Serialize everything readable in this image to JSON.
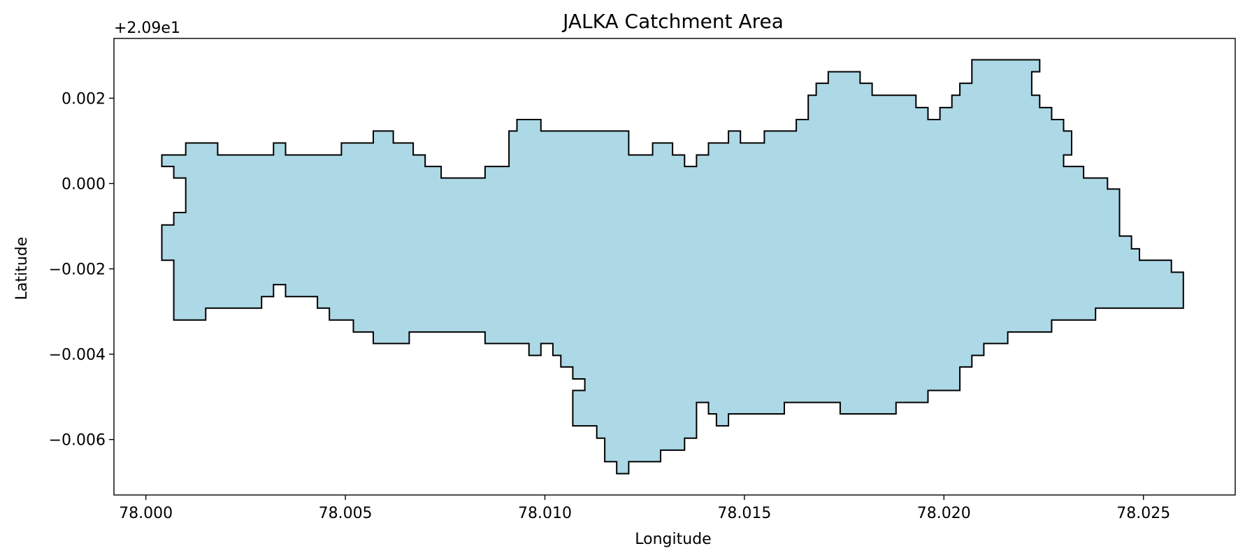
{
  "chart_data": {
    "type": "area",
    "title": "JALKA Catchment Area",
    "xlabel": "Longitude",
    "ylabel": "Latitude",
    "y_offset_label": "+2.09e1",
    "y_offset": 20.9,
    "xlim": [
      77.9992,
      78.0273
    ],
    "ylim": [
      -0.0073,
      0.0034
    ],
    "x_ticks": [
      78.0,
      78.005,
      78.01,
      78.015,
      78.02,
      78.025
    ],
    "x_tick_labels": [
      "78.000",
      "78.005",
      "78.010",
      "78.015",
      "78.020",
      "78.025"
    ],
    "y_ticks": [
      0.002,
      0.0,
      -0.002,
      -0.004,
      -0.006
    ],
    "y_tick_labels": [
      "0.002",
      "0.000",
      "−0.002",
      "−0.004",
      "−0.006"
    ],
    "grid": false,
    "fill_color": "#add8e6",
    "edge_color": "#000000",
    "polygon": [
      [
        78.0004,
        0.00067
      ],
      [
        78.001,
        0.00067
      ],
      [
        78.001,
        0.00095
      ],
      [
        78.0018,
        0.00095
      ],
      [
        78.0018,
        0.00067
      ],
      [
        78.0032,
        0.00067
      ],
      [
        78.0032,
        0.00095
      ],
      [
        78.0035,
        0.00095
      ],
      [
        78.0035,
        0.00067
      ],
      [
        78.0049,
        0.00067
      ],
      [
        78.0049,
        0.00095
      ],
      [
        78.0057,
        0.00095
      ],
      [
        78.0057,
        0.00123
      ],
      [
        78.0062,
        0.00123
      ],
      [
        78.0062,
        0.00095
      ],
      [
        78.0067,
        0.00095
      ],
      [
        78.0067,
        0.00067
      ],
      [
        78.007,
        0.00067
      ],
      [
        78.007,
        0.0004
      ],
      [
        78.0074,
        0.0004
      ],
      [
        78.0074,
        0.00013
      ],
      [
        78.0085,
        0.00013
      ],
      [
        78.0085,
        0.0004
      ],
      [
        78.0091,
        0.0004
      ],
      [
        78.0091,
        0.00123
      ],
      [
        78.0093,
        0.00123
      ],
      [
        78.0093,
        0.0015
      ],
      [
        78.0099,
        0.0015
      ],
      [
        78.0099,
        0.00123
      ],
      [
        78.0121,
        0.00123
      ],
      [
        78.0121,
        0.00067
      ],
      [
        78.0127,
        0.00067
      ],
      [
        78.0127,
        0.00095
      ],
      [
        78.0132,
        0.00095
      ],
      [
        78.0132,
        0.00067
      ],
      [
        78.0135,
        0.00067
      ],
      [
        78.0135,
        0.0004
      ],
      [
        78.0138,
        0.0004
      ],
      [
        78.0138,
        0.00067
      ],
      [
        78.0141,
        0.00067
      ],
      [
        78.0141,
        0.00095
      ],
      [
        78.0146,
        0.00095
      ],
      [
        78.0146,
        0.00123
      ],
      [
        78.0149,
        0.00123
      ],
      [
        78.0149,
        0.00095
      ],
      [
        78.0155,
        0.00095
      ],
      [
        78.0155,
        0.00123
      ],
      [
        78.0163,
        0.00123
      ],
      [
        78.0163,
        0.0015
      ],
      [
        78.0166,
        0.0015
      ],
      [
        78.0166,
        0.00207
      ],
      [
        78.0168,
        0.00207
      ],
      [
        78.0168,
        0.00235
      ],
      [
        78.0171,
        0.00235
      ],
      [
        78.0171,
        0.00262
      ],
      [
        78.0179,
        0.00262
      ],
      [
        78.0179,
        0.00235
      ],
      [
        78.0182,
        0.00235
      ],
      [
        78.0182,
        0.00207
      ],
      [
        78.0193,
        0.00207
      ],
      [
        78.0193,
        0.00178
      ],
      [
        78.0196,
        0.00178
      ],
      [
        78.0196,
        0.0015
      ],
      [
        78.0199,
        0.0015
      ],
      [
        78.0199,
        0.00178
      ],
      [
        78.0202,
        0.00178
      ],
      [
        78.0202,
        0.00207
      ],
      [
        78.0204,
        0.00207
      ],
      [
        78.0204,
        0.00235
      ],
      [
        78.0207,
        0.00235
      ],
      [
        78.0207,
        0.0029
      ],
      [
        78.0224,
        0.0029
      ],
      [
        78.0224,
        0.00262
      ],
      [
        78.0222,
        0.00262
      ],
      [
        78.0222,
        0.00207
      ],
      [
        78.0224,
        0.00207
      ],
      [
        78.0224,
        0.00178
      ],
      [
        78.0227,
        0.00178
      ],
      [
        78.0227,
        0.0015
      ],
      [
        78.023,
        0.0015
      ],
      [
        78.023,
        0.00123
      ],
      [
        78.0232,
        0.00123
      ],
      [
        78.0232,
        0.00067
      ],
      [
        78.023,
        0.00067
      ],
      [
        78.023,
        0.0004
      ],
      [
        78.0235,
        0.0004
      ],
      [
        78.0235,
        0.00013
      ],
      [
        78.0241,
        0.00013
      ],
      [
        78.0241,
        -0.00013
      ],
      [
        78.0244,
        -0.00013
      ],
      [
        78.0244,
        -0.00123
      ],
      [
        78.0247,
        -0.00123
      ],
      [
        78.0247,
        -0.00153
      ],
      [
        78.0249,
        -0.00153
      ],
      [
        78.0249,
        -0.0018
      ],
      [
        78.0257,
        -0.0018
      ],
      [
        78.0257,
        -0.00208
      ],
      [
        78.026,
        -0.00208
      ],
      [
        78.026,
        -0.00292
      ],
      [
        78.0238,
        -0.00292
      ],
      [
        78.0238,
        -0.0032
      ],
      [
        78.0227,
        -0.0032
      ],
      [
        78.0227,
        -0.00348
      ],
      [
        78.0216,
        -0.00348
      ],
      [
        78.0216,
        -0.00375
      ],
      [
        78.021,
        -0.00375
      ],
      [
        78.021,
        -0.00403
      ],
      [
        78.0207,
        -0.00403
      ],
      [
        78.0207,
        -0.0043
      ],
      [
        78.0204,
        -0.0043
      ],
      [
        78.0204,
        -0.00485
      ],
      [
        78.0196,
        -0.00485
      ],
      [
        78.0196,
        -0.00513
      ],
      [
        78.0188,
        -0.00513
      ],
      [
        78.0188,
        -0.0054
      ],
      [
        78.0174,
        -0.0054
      ],
      [
        78.0174,
        -0.00513
      ],
      [
        78.016,
        -0.00513
      ],
      [
        78.016,
        -0.0054
      ],
      [
        78.0146,
        -0.0054
      ],
      [
        78.0146,
        -0.00568
      ],
      [
        78.0143,
        -0.00568
      ],
      [
        78.0143,
        -0.0054
      ],
      [
        78.0141,
        -0.0054
      ],
      [
        78.0141,
        -0.00513
      ],
      [
        78.0138,
        -0.00513
      ],
      [
        78.0138,
        -0.00597
      ],
      [
        78.0135,
        -0.00597
      ],
      [
        78.0135,
        -0.00625
      ],
      [
        78.0129,
        -0.00625
      ],
      [
        78.0129,
        -0.00652
      ],
      [
        78.0121,
        -0.00652
      ],
      [
        78.0121,
        -0.0068
      ],
      [
        78.0118,
        -0.0068
      ],
      [
        78.0118,
        -0.00652
      ],
      [
        78.0115,
        -0.00652
      ],
      [
        78.0115,
        -0.00597
      ],
      [
        78.0113,
        -0.00597
      ],
      [
        78.0113,
        -0.00568
      ],
      [
        78.0107,
        -0.00568
      ],
      [
        78.0107,
        -0.00485
      ],
      [
        78.011,
        -0.00485
      ],
      [
        78.011,
        -0.00458
      ],
      [
        78.0107,
        -0.00458
      ],
      [
        78.0107,
        -0.0043
      ],
      [
        78.0104,
        -0.0043
      ],
      [
        78.0104,
        -0.00403
      ],
      [
        78.0102,
        -0.00403
      ],
      [
        78.0102,
        -0.00375
      ],
      [
        78.0099,
        -0.00375
      ],
      [
        78.0099,
        -0.00403
      ],
      [
        78.0096,
        -0.00403
      ],
      [
        78.0096,
        -0.00375
      ],
      [
        78.0085,
        -0.00375
      ],
      [
        78.0085,
        -0.00348
      ],
      [
        78.0066,
        -0.00348
      ],
      [
        78.0066,
        -0.00375
      ],
      [
        78.0057,
        -0.00375
      ],
      [
        78.0057,
        -0.00348
      ],
      [
        78.0052,
        -0.00348
      ],
      [
        78.0052,
        -0.0032
      ],
      [
        78.0046,
        -0.0032
      ],
      [
        78.0046,
        -0.00292
      ],
      [
        78.0043,
        -0.00292
      ],
      [
        78.0043,
        -0.00265
      ],
      [
        78.0035,
        -0.00265
      ],
      [
        78.0035,
        -0.00237
      ],
      [
        78.0032,
        -0.00237
      ],
      [
        78.0032,
        -0.00265
      ],
      [
        78.0029,
        -0.00265
      ],
      [
        78.0029,
        -0.00292
      ],
      [
        78.0015,
        -0.00292
      ],
      [
        78.0015,
        -0.0032
      ],
      [
        78.0007,
        -0.0032
      ],
      [
        78.0007,
        -0.0018
      ],
      [
        78.0004,
        -0.0018
      ],
      [
        78.0004,
        -0.00097
      ],
      [
        78.0007,
        -0.00097
      ],
      [
        78.0007,
        -0.00068
      ],
      [
        78.001,
        -0.00068
      ],
      [
        78.001,
        0.00013
      ],
      [
        78.0007,
        0.00013
      ],
      [
        78.0007,
        0.0004
      ],
      [
        78.0004,
        0.0004
      ]
    ]
  }
}
